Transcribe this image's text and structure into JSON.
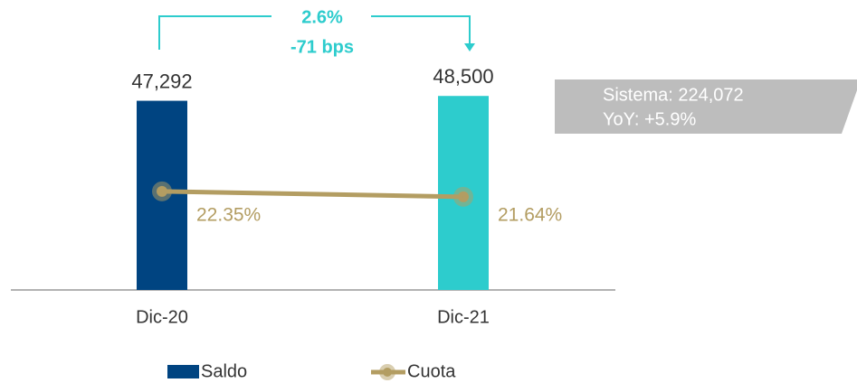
{
  "chart_data": {
    "type": "bar",
    "categories": [
      "Dic-20",
      "Dic-21"
    ],
    "series": [
      {
        "name": "Saldo",
        "type": "bar",
        "colors": [
          "#004481",
          "#2dcccd"
        ],
        "values": [
          47292,
          48500
        ],
        "value_labels": [
          "47,292",
          "48,500"
        ]
      },
      {
        "name": "Cuota",
        "type": "line",
        "axis": "y2",
        "color": "#b39d62",
        "values": [
          22.35,
          21.64
        ],
        "value_labels": [
          "22.35%",
          "21.64%"
        ]
      }
    ],
    "ylim": [
      0,
      70000
    ],
    "y2lim": [
      9.5,
      46
    ],
    "annotations": [
      "2.6%",
      "-71 bps"
    ],
    "info_box": [
      "Sistema:  224,072",
      "YoY: +5.9%"
    ],
    "legend": "bottom"
  }
}
